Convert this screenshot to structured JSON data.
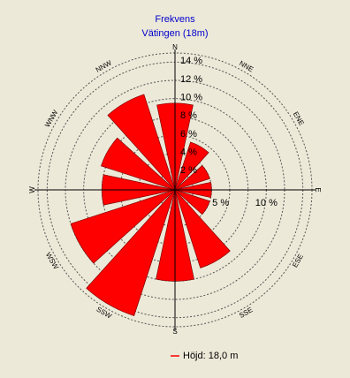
{
  "chart_data": {
    "type": "windrose",
    "title": "Frekvens",
    "subtitle": "Vätingen (18m)",
    "categories": [
      "N",
      "NNE",
      "ENE",
      "E",
      "ESE",
      "SSE",
      "S",
      "SSW",
      "WSW",
      "W",
      "WNW",
      "NNW"
    ],
    "series": [
      {
        "name": "Höjd: 18,0 m",
        "color": "#ff0000",
        "values": [
          9.5,
          5.5,
          4,
          4,
          4,
          9,
          10,
          14.5,
          12,
          8,
          8.5,
          11
        ]
      }
    ],
    "rlim": [
      0,
      15
    ],
    "yticks": [
      {
        "value": 2,
        "label": "2 %"
      },
      {
        "value": 4,
        "label": "4 %"
      },
      {
        "value": 6,
        "label": "6 %"
      },
      {
        "value": 8,
        "label": "8 %"
      },
      {
        "value": 10,
        "label": "10 %"
      },
      {
        "value": 12,
        "label": "12 %"
      },
      {
        "value": 14,
        "label": "14 %"
      }
    ],
    "xticks": [
      {
        "value": 5,
        "label": "5 %"
      },
      {
        "value": 10,
        "label": "10 %"
      }
    ]
  }
}
